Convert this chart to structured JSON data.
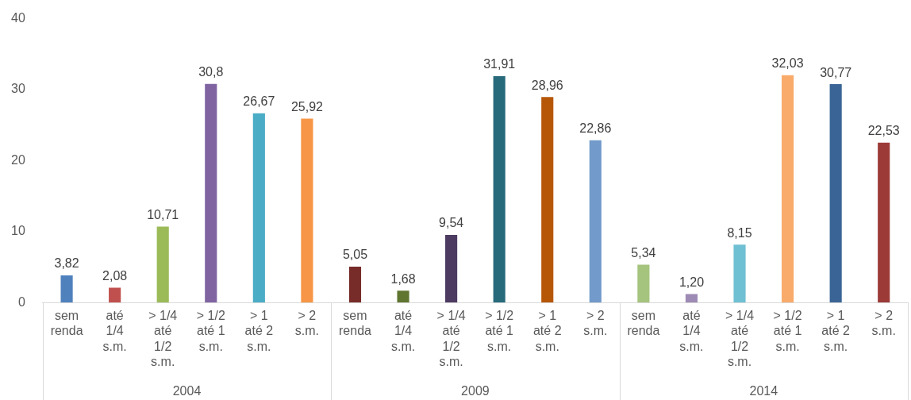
{
  "chart_data": {
    "type": "bar",
    "categories": [
      "sem renda",
      "até 1/4 s.m.",
      "> 1/4 até 1/2 s.m.",
      "> 1/2 até 1 s.m.",
      "> 1 até 2 s.m.",
      "> 2 s.m.",
      "sem renda",
      "até 1/4 s.m.",
      "> 1/4 até 1/2 s.m.",
      "> 1/2 até 1 s.m.",
      "> 1 até 2 s.m.",
      "> 2 s.m.",
      "sem renda",
      "até 1/4 s.m.",
      "> 1/4 até 1/2 s.m.",
      "> 1/2 até 1 s.m.",
      "> 1 até 2 s.m.",
      "> 2 s.m."
    ],
    "values": [
      3.82,
      2.08,
      10.71,
      30.8,
      26.67,
      25.92,
      5.05,
      1.68,
      9.54,
      31.91,
      28.96,
      22.86,
      5.34,
      1.2,
      8.15,
      32.03,
      30.77,
      22.53
    ],
    "value_labels": [
      "3,82",
      "2,08",
      "10,71",
      "30,8",
      "26,67",
      "25,92",
      "5,05",
      "1,68",
      "9,54",
      "31,91",
      "28,96",
      "22,86",
      "5,34",
      "1,20",
      "8,15",
      "32,03",
      "30,77",
      "22,53"
    ],
    "colors": [
      "#4f81bd",
      "#c0504d",
      "#9bbb59",
      "#8064a2",
      "#4bacc6",
      "#f79646",
      "#772c2a",
      "#5f7530",
      "#4d3b62",
      "#276a7c",
      "#b65708",
      "#729aca",
      "#a5c47e",
      "#9d8bb5",
      "#6fc0d3",
      "#f9ab6b",
      "#3a6496",
      "#9c3a38"
    ],
    "annotations": [
      "2004",
      "2009",
      "2014"
    ],
    "ylim": [
      0,
      40
    ],
    "yticks": [
      0,
      10,
      20,
      30,
      40
    ],
    "grid": false,
    "legend": false
  }
}
